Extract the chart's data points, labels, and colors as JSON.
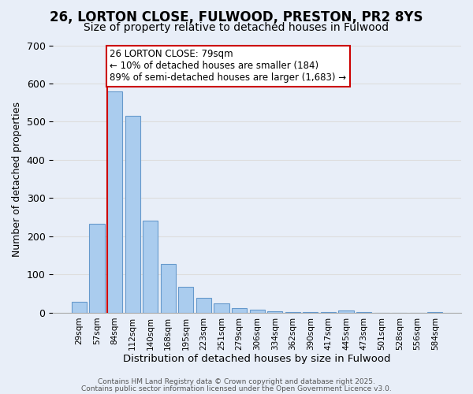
{
  "title_line1": "26, LORTON CLOSE, FULWOOD, PRESTON, PR2 8YS",
  "title_line2": "Size of property relative to detached houses in Fulwood",
  "xlabel": "Distribution of detached houses by size in Fulwood",
  "ylabel": "Number of detached properties",
  "categories": [
    "29sqm",
    "57sqm",
    "84sqm",
    "112sqm",
    "140sqm",
    "168sqm",
    "195sqm",
    "223sqm",
    "251sqm",
    "279sqm",
    "306sqm",
    "334sqm",
    "362sqm",
    "390sqm",
    "417sqm",
    "445sqm",
    "473sqm",
    "501sqm",
    "528sqm",
    "556sqm",
    "584sqm"
  ],
  "values": [
    28,
    232,
    580,
    515,
    242,
    127,
    68,
    40,
    25,
    13,
    8,
    5,
    3,
    2,
    1,
    7,
    1,
    0,
    0,
    0,
    2
  ],
  "bar_color": "#aaccee",
  "bar_edgecolor": "#6699cc",
  "bar_linewidth": 0.8,
  "grid_color": "#dddddd",
  "background_color": "#e8eef8",
  "ylim": [
    0,
    700
  ],
  "yticks": [
    0,
    100,
    200,
    300,
    400,
    500,
    600,
    700
  ],
  "red_line_x": 1.575,
  "annotation_text": "26 LORTON CLOSE: 79sqm\n← 10% of detached houses are smaller (184)\n89% of semi-detached houses are larger (1,683) →",
  "annotation_box_color": "#ffffff",
  "annotation_box_edgecolor": "#cc0000",
  "annotation_fontsize": 8.5,
  "red_line_color": "#cc0000",
  "footer_line1": "Contains HM Land Registry data © Crown copyright and database right 2025.",
  "footer_line2": "Contains public sector information licensed under the Open Government Licence v3.0.",
  "title_fontsize": 12,
  "subtitle_fontsize": 10,
  "xlabel_fontsize": 9.5,
  "ylabel_fontsize": 9,
  "footer_fontsize": 6.5
}
